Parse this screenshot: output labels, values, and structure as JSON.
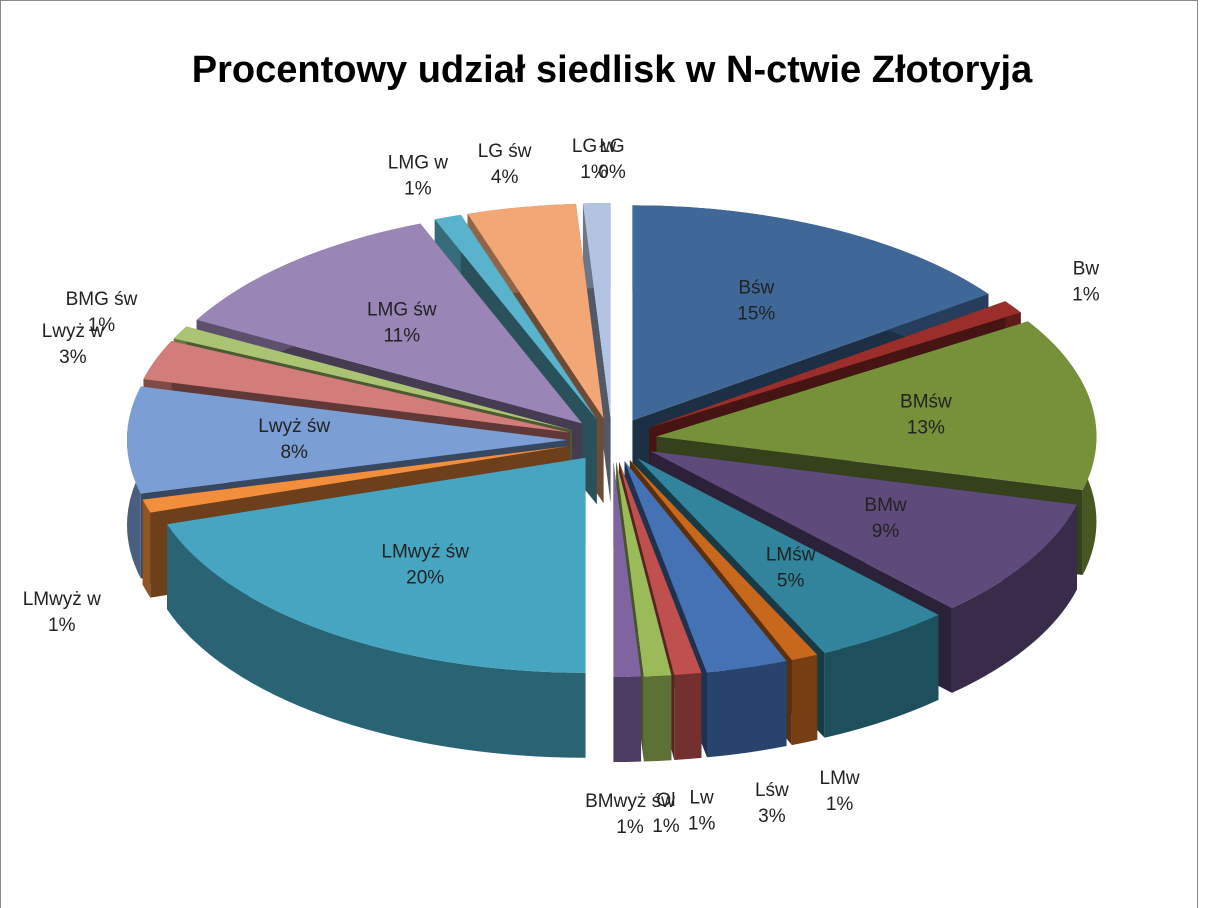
{
  "chart_data": {
    "type": "pie3d",
    "title": "Procentowy udział siedlisk w N-ctwie Złotoryja",
    "categories": [
      "Bśw",
      "Bw",
      "BMśw",
      "BMw",
      "LMśw",
      "LMw",
      "Lśw",
      "Lw",
      "Ol",
      "BMwyż św",
      "LMwyż św",
      "LMwyż w",
      "Lwyż św",
      "Lwyż w",
      "BMG św",
      "LMG św",
      "LMG w",
      "LG św",
      "LG w",
      "ŁG"
    ],
    "values": [
      15,
      1,
      13,
      9,
      5,
      1,
      3,
      1,
      1,
      1,
      20,
      1,
      8,
      3,
      1,
      11,
      1,
      4,
      1,
      0
    ],
    "value_labels": [
      "15%",
      "1%",
      "13%",
      "9%",
      "5%",
      "1%",
      "3%",
      "1%",
      "1%",
      "1%",
      "20%",
      "1%",
      "8%",
      "3%",
      "1%",
      "11%",
      "1%",
      "4%",
      "1%",
      "0%"
    ],
    "colors": [
      "#3f6898",
      "#9b2d2a",
      "#769139",
      "#5f4a7c",
      "#31849b",
      "#c7681c",
      "#4572b4",
      "#c0504d",
      "#9bbb59",
      "#8064a2",
      "#46a6c2",
      "#f28e3c",
      "#7b9ed4",
      "#d27d7a",
      "#abc473",
      "#9985b6",
      "#5ab3cc",
      "#f4a776",
      "#b3c4e3",
      "#e4aaaa"
    ]
  }
}
